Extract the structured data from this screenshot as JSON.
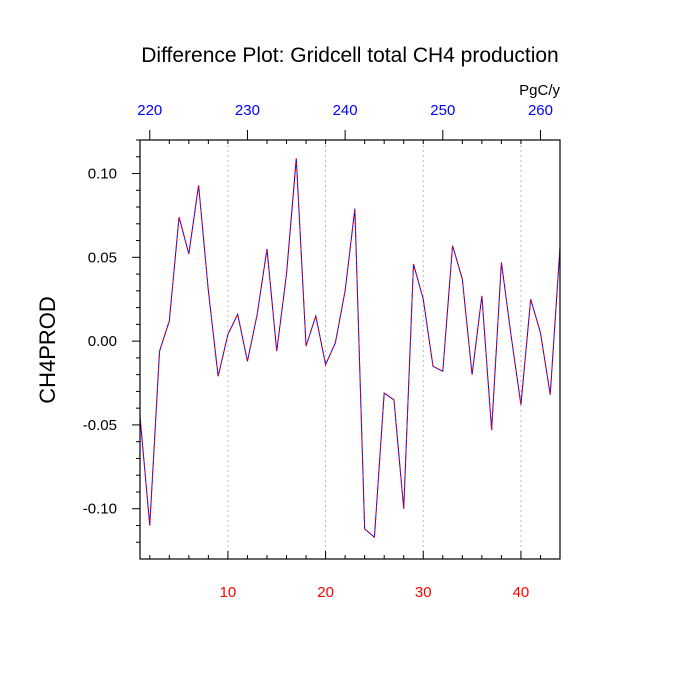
{
  "chart_data": {
    "type": "line",
    "title": "Difference Plot: Gridcell total CH4 production",
    "ylabel": "CH4PROD",
    "top_axis_unit": "PgC/y",
    "x": [
      1,
      2,
      3,
      4,
      5,
      6,
      7,
      8,
      9,
      10,
      11,
      12,
      13,
      14,
      15,
      16,
      17,
      18,
      19,
      20,
      21,
      22,
      23,
      24,
      25,
      26,
      27,
      28,
      29,
      30,
      31,
      32,
      33,
      34,
      35,
      36,
      37,
      38,
      39,
      40,
      41,
      42,
      43,
      44
    ],
    "series": [
      {
        "color": "#0000ff",
        "dash_color": "#ff0000",
        "values": [
          -0.045,
          -0.11,
          -0.006,
          0.012,
          0.074,
          0.052,
          0.093,
          0.03,
          -0.021,
          0.004,
          0.016,
          -0.012,
          0.016,
          0.055,
          -0.006,
          0.04,
          0.109,
          -0.003,
          0.015,
          -0.014,
          -0.001,
          0.03,
          0.079,
          -0.112,
          -0.117,
          -0.031,
          -0.035,
          -0.1,
          0.046,
          0.025,
          -0.015,
          -0.018,
          0.057,
          0.037,
          -0.02,
          0.027,
          -0.053,
          0.047,
          0.003,
          -0.038,
          0.025,
          0.005,
          -0.032,
          0.056
        ]
      }
    ],
    "xlim": [
      1,
      44
    ],
    "ylim": [
      -0.13,
      0.12
    ],
    "bottom_ticks": [
      10,
      20,
      30,
      40
    ],
    "bottom_tick_labels": [
      "10",
      "20",
      "30",
      "40"
    ],
    "bottom_tick_color": "#ff0000",
    "top_ticks": [
      2,
      12,
      22,
      32,
      42
    ],
    "top_tick_labels": [
      "220",
      "230",
      "240",
      "250",
      "260"
    ],
    "top_tick_color": "#0000ff",
    "y_ticks": [
      0.1,
      0.05,
      0.0,
      -0.05,
      -0.1
    ],
    "y_tick_labels": [
      "0.10",
      "0.05",
      "0.00",
      "-0.05",
      "-0.10"
    ],
    "grid": "vertical dotted at bottom ticks"
  }
}
